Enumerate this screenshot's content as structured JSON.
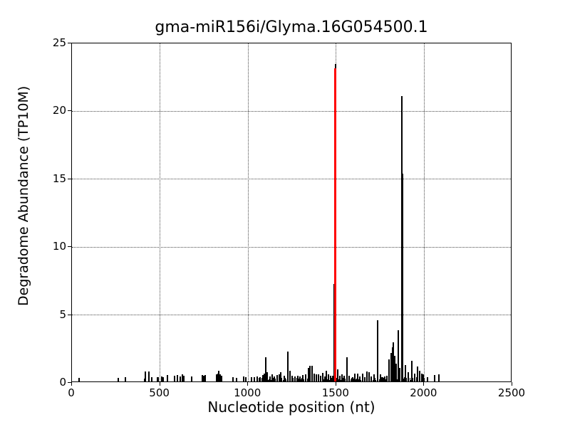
{
  "chart_data": {
    "type": "bar",
    "title": "gma-miR156i/Glyma.16G054500.1",
    "xlabel": "Nucleotide position (nt)",
    "ylabel": "Degradome Abundance (TP10M)",
    "xlim": [
      0,
      2500
    ],
    "ylim": [
      0,
      25
    ],
    "x_ticks": [
      0,
      500,
      1000,
      1500,
      2000,
      2500
    ],
    "y_ticks": [
      0,
      5,
      10,
      15,
      20,
      25
    ],
    "grid": {
      "show": true,
      "style": "dotted",
      "color": "#4a4a4a",
      "x_lines": [
        500,
        1000,
        1500,
        2000
      ],
      "y_lines": [
        5,
        10,
        15,
        20
      ]
    },
    "bar_color": "#000000",
    "highlight": {
      "x": 1496,
      "y": 23.3,
      "color": "#ff0000"
    },
    "points": [
      [
        40,
        0.25
      ],
      [
        263,
        0.25
      ],
      [
        303,
        0.3
      ],
      [
        414,
        0.2
      ],
      [
        417,
        0.75
      ],
      [
        437,
        0.75
      ],
      [
        453,
        0.3
      ],
      [
        487,
        0.3
      ],
      [
        491,
        0.3
      ],
      [
        510,
        0.35
      ],
      [
        518,
        0.3
      ],
      [
        542,
        0.45
      ],
      [
        583,
        0.4
      ],
      [
        599,
        0.45
      ],
      [
        615,
        0.35
      ],
      [
        627,
        0.5
      ],
      [
        635,
        0.4
      ],
      [
        680,
        0.35
      ],
      [
        740,
        0.45
      ],
      [
        748,
        0.4
      ],
      [
        756,
        0.45
      ],
      [
        821,
        0.5
      ],
      [
        829,
        0.6
      ],
      [
        833,
        0.8
      ],
      [
        841,
        0.5
      ],
      [
        849,
        0.4
      ],
      [
        914,
        0.3
      ],
      [
        934,
        0.25
      ],
      [
        975,
        0.35
      ],
      [
        987,
        0.3
      ],
      [
        1019,
        0.3
      ],
      [
        1036,
        0.3
      ],
      [
        1052,
        0.35
      ],
      [
        1068,
        0.3
      ],
      [
        1084,
        0.45
      ],
      [
        1092,
        0.6
      ],
      [
        1100,
        1.8
      ],
      [
        1108,
        0.7
      ],
      [
        1124,
        0.35
      ],
      [
        1136,
        0.5
      ],
      [
        1148,
        0.35
      ],
      [
        1165,
        0.45
      ],
      [
        1177,
        0.5
      ],
      [
        1185,
        0.7
      ],
      [
        1205,
        0.4
      ],
      [
        1226,
        2.2
      ],
      [
        1238,
        0.8
      ],
      [
        1250,
        0.4
      ],
      [
        1266,
        0.35
      ],
      [
        1282,
        0.4
      ],
      [
        1294,
        0.35
      ],
      [
        1311,
        0.45
      ],
      [
        1327,
        0.5
      ],
      [
        1343,
        1.0
      ],
      [
        1351,
        1.15
      ],
      [
        1363,
        1.15
      ],
      [
        1375,
        0.6
      ],
      [
        1387,
        0.5
      ],
      [
        1400,
        0.55
      ],
      [
        1412,
        0.4
      ],
      [
        1424,
        0.65
      ],
      [
        1436,
        0.35
      ],
      [
        1444,
        0.8
      ],
      [
        1456,
        0.5
      ],
      [
        1468,
        0.4
      ],
      [
        1480,
        0.4
      ],
      [
        1488,
        7.2
      ],
      [
        1509,
        0.9
      ],
      [
        1521,
        0.4
      ],
      [
        1533,
        0.5
      ],
      [
        1545,
        0.4
      ],
      [
        1561,
        1.8
      ],
      [
        1573,
        0.4
      ],
      [
        1594,
        0.3
      ],
      [
        1606,
        0.6
      ],
      [
        1622,
        0.6
      ],
      [
        1634,
        0.35
      ],
      [
        1650,
        0.6
      ],
      [
        1662,
        0.3
      ],
      [
        1675,
        0.75
      ],
      [
        1687,
        0.7
      ],
      [
        1699,
        0.35
      ],
      [
        1715,
        0.5
      ],
      [
        1735,
        4.5
      ],
      [
        1751,
        0.5
      ],
      [
        1763,
        0.3
      ],
      [
        1776,
        0.35
      ],
      [
        1788,
        0.4
      ],
      [
        1800,
        1.6
      ],
      [
        1812,
        2.1
      ],
      [
        1820,
        2.5
      ],
      [
        1824,
        2.9
      ],
      [
        1832,
        1.9
      ],
      [
        1840,
        1.3
      ],
      [
        1852,
        3.8
      ],
      [
        1860,
        1.0
      ],
      [
        1873,
        21.0
      ],
      [
        1877,
        15.3
      ],
      [
        1893,
        1.2
      ],
      [
        1909,
        0.7
      ],
      [
        1929,
        1.5
      ],
      [
        1945,
        0.6
      ],
      [
        1962,
        1.1
      ],
      [
        1974,
        0.8
      ],
      [
        1986,
        0.6
      ],
      [
        1994,
        0.5
      ],
      [
        2018,
        0.3
      ],
      [
        2060,
        0.45
      ],
      [
        2085,
        0.5
      ]
    ],
    "baseline_noise": {
      "x_start": 1048,
      "x_end": 2004,
      "step": 6,
      "h_min": 0.1,
      "h_max": 0.3
    }
  }
}
